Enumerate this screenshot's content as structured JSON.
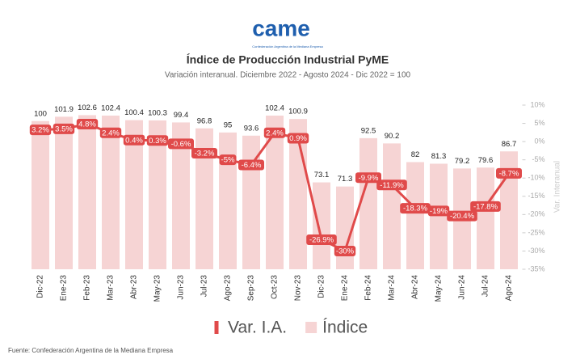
{
  "logo": {
    "text": "came",
    "tagline": "Confederación Argentina de la Mediana Empresa"
  },
  "source": "Fuente: Confederación Argentina de la Mediana Empresa",
  "chart_data": {
    "type": "bar-line",
    "title": "Índice de Producción Industrial PyME",
    "subtitle": "Variación interanual. Diciembre 2022 - Agosto 2024 - Dic 2022 = 100",
    "y2label": "Var. Interanual",
    "categories": [
      "Dic-22",
      "Ene-23",
      "Feb-23",
      "Mar-23",
      "Abr-23",
      "May-23",
      "Jun-23",
      "Jul-23",
      "Ago-23",
      "Sep-23",
      "Oct-23",
      "Nov-23",
      "Dic-23",
      "Ene-24",
      "Feb-24",
      "Mar-24",
      "Abr-24",
      "May-24",
      "Jun-24",
      "Jul-24",
      "Ago-24"
    ],
    "series": [
      {
        "name": "Var. I.A.",
        "type": "line",
        "axis": "y2",
        "color": "#e04a4a",
        "values": [
          3.2,
          3.5,
          4.8,
          2.4,
          0.4,
          0.3,
          -0.6,
          -3.2,
          -5,
          -6.4,
          2.4,
          0.9,
          -26.9,
          -30,
          -9.9,
          -11.9,
          -18.3,
          -19,
          -20.4,
          -17.8,
          -8.7
        ],
        "value_labels": [
          "3.2%",
          "3.5%",
          "4.8%",
          "2.4%",
          "0.4%",
          "0.3%",
          "-0.6%",
          "-3.2%",
          "-5%",
          "-6.4%",
          "2.4%",
          "0.9%",
          "-26.9%",
          "-30%",
          "-9.9%",
          "-11.9%",
          "-18.3%",
          "-19%",
          "-20.4%",
          "-17.8%",
          "-8.7%"
        ]
      },
      {
        "name": "Índice",
        "type": "bar",
        "color": "#f6d4d4",
        "values": [
          100,
          101.9,
          102.6,
          102.4,
          100.4,
          100.3,
          99.4,
          96.8,
          95,
          93.6,
          102.4,
          100.9,
          73.1,
          71.3,
          92.5,
          90.2,
          82,
          81.3,
          79.2,
          79.6,
          86.7
        ]
      }
    ],
    "ylim": [
      35,
      107
    ],
    "y2lim": [
      -35,
      10
    ],
    "y2ticks": [
      {
        "value": 10,
        "label": "10%"
      },
      {
        "value": 5,
        "label": "5%"
      },
      {
        "value": 0,
        "label": "0%"
      },
      {
        "value": -5,
        "label": "-5%"
      },
      {
        "value": -10,
        "label": "-10%"
      },
      {
        "value": -15,
        "label": "-15%"
      },
      {
        "value": -20,
        "label": "-20%"
      },
      {
        "value": -25,
        "label": "-25%"
      },
      {
        "value": -30,
        "label": "-30%"
      },
      {
        "value": -35,
        "label": "-35%"
      }
    ],
    "grid": false,
    "legend": "bottom"
  }
}
